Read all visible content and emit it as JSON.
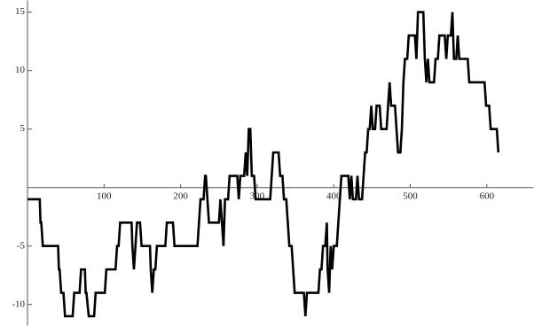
{
  "chart_data": {
    "type": "line",
    "x": [
      0,
      16,
      17,
      18,
      20,
      40,
      41,
      42,
      44,
      47,
      49,
      59,
      61,
      68,
      70,
      75,
      76,
      77,
      80,
      87,
      89,
      101,
      103,
      115,
      117,
      119,
      121,
      136,
      137,
      139,
      141,
      143,
      147,
      149,
      160,
      161,
      163,
      165,
      167,
      169,
      180,
      182,
      190,
      192,
      222,
      224,
      226,
      230,
      232,
      233,
      235,
      237,
      250,
      252,
      254,
      256,
      258,
      262,
      264,
      274,
      276,
      278,
      283,
      285,
      287,
      289,
      291,
      293,
      296,
      298,
      317,
      319,
      321,
      328,
      330,
      333,
      335,
      338,
      340,
      342,
      345,
      347,
      349,
      361,
      363,
      365,
      380,
      382,
      384,
      386,
      389,
      391,
      392,
      394,
      396,
      398,
      400,
      404,
      406,
      408,
      410,
      419,
      421,
      423,
      425,
      429,
      431,
      433,
      437,
      439,
      441,
      443,
      445,
      447,
      449,
      451,
      454,
      456,
      460,
      462,
      469,
      471,
      473,
      475,
      480,
      482,
      484,
      487,
      489,
      491,
      493,
      496,
      498,
      506,
      508,
      510,
      517,
      519,
      521,
      523,
      525,
      531,
      533,
      536,
      538,
      545,
      547,
      549,
      553,
      555,
      557,
      560,
      562,
      564,
      575,
      577,
      597,
      599,
      603,
      605,
      613,
      615
    ],
    "series": [
      {
        "color": "#000000",
        "values": [
          -1,
          -1,
          -3,
          -3,
          -5,
          -5,
          -7,
          -7,
          -9,
          -9,
          -11,
          -11,
          -9,
          -9,
          -7,
          -7,
          -9,
          -9,
          -11,
          -11,
          -9,
          -9,
          -7,
          -7,
          -5,
          -5,
          -3,
          -3,
          -5,
          -7,
          -5,
          -3,
          -3,
          -5,
          -5,
          -7,
          -9,
          -7,
          -7,
          -5,
          -5,
          -3,
          -3,
          -5,
          -5,
          -3,
          -1,
          -1,
          1,
          1,
          -1,
          -3,
          -3,
          -1,
          -3,
          -5,
          -1,
          -1,
          1,
          1,
          -1,
          1,
          1,
          3,
          1,
          5,
          5,
          1,
          1,
          -1,
          -1,
          1,
          3,
          3,
          1,
          1,
          -1,
          -1,
          -3,
          -5,
          -5,
          -7,
          -9,
          -9,
          -11,
          -9,
          -9,
          -7,
          -7,
          -5,
          -5,
          -3,
          -7,
          -9,
          -5,
          -7,
          -5,
          -5,
          -3,
          -1,
          1,
          1,
          -1,
          1,
          -1,
          -1,
          1,
          -1,
          -1,
          1,
          3,
          3,
          5,
          5,
          7,
          5,
          5,
          7,
          7,
          5,
          5,
          7,
          9,
          7,
          7,
          5,
          3,
          3,
          5,
          9,
          11,
          11,
          13,
          13,
          11,
          15,
          15,
          11,
          9,
          11,
          9,
          9,
          11,
          11,
          13,
          13,
          11,
          13,
          13,
          15,
          11,
          11,
          13,
          11,
          11,
          9,
          9,
          7,
          7,
          5,
          5,
          3
        ]
      }
    ],
    "xlim": [
      0,
      661
    ],
    "ylim": [
      -11.8,
      16
    ],
    "xticks": [
      100,
      200,
      300,
      400,
      500,
      600
    ],
    "yticks": [
      -10,
      -5,
      5,
      10,
      15
    ]
  }
}
